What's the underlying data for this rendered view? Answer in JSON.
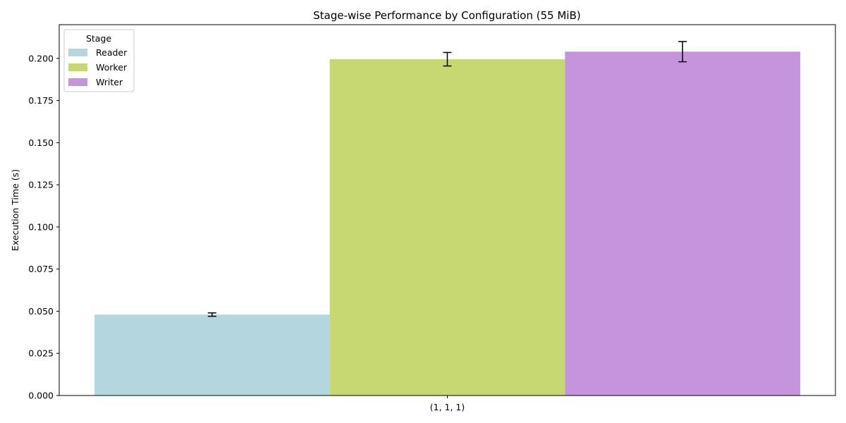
{
  "chart_data": {
    "type": "bar",
    "title": "Stage-wise Performance by Configuration (55 MiB)",
    "xlabel": "",
    "ylabel": "Execution Time (s)",
    "categories": [
      "(1, 1, 1)"
    ],
    "ylim": [
      0,
      0.22
    ],
    "yticks": [
      0.0,
      0.025,
      0.05,
      0.075,
      0.1,
      0.125,
      0.15,
      0.175,
      0.2
    ],
    "ytick_labels": [
      "0.000",
      "0.025",
      "0.050",
      "0.075",
      "0.100",
      "0.125",
      "0.150",
      "0.175",
      "0.200"
    ],
    "grid": false,
    "legend": {
      "title": "Stage",
      "placement": "top-left"
    },
    "series": [
      {
        "name": "Reader",
        "values": [
          0.048
        ],
        "errors": [
          0.001
        ],
        "color": "#b4d7df"
      },
      {
        "name": "Worker",
        "values": [
          0.1995
        ],
        "errors": [
          0.004
        ],
        "color": "#c7d772"
      },
      {
        "name": "Writer",
        "values": [
          0.204
        ],
        "errors": [
          0.006
        ],
        "color": "#c594dd"
      }
    ]
  }
}
